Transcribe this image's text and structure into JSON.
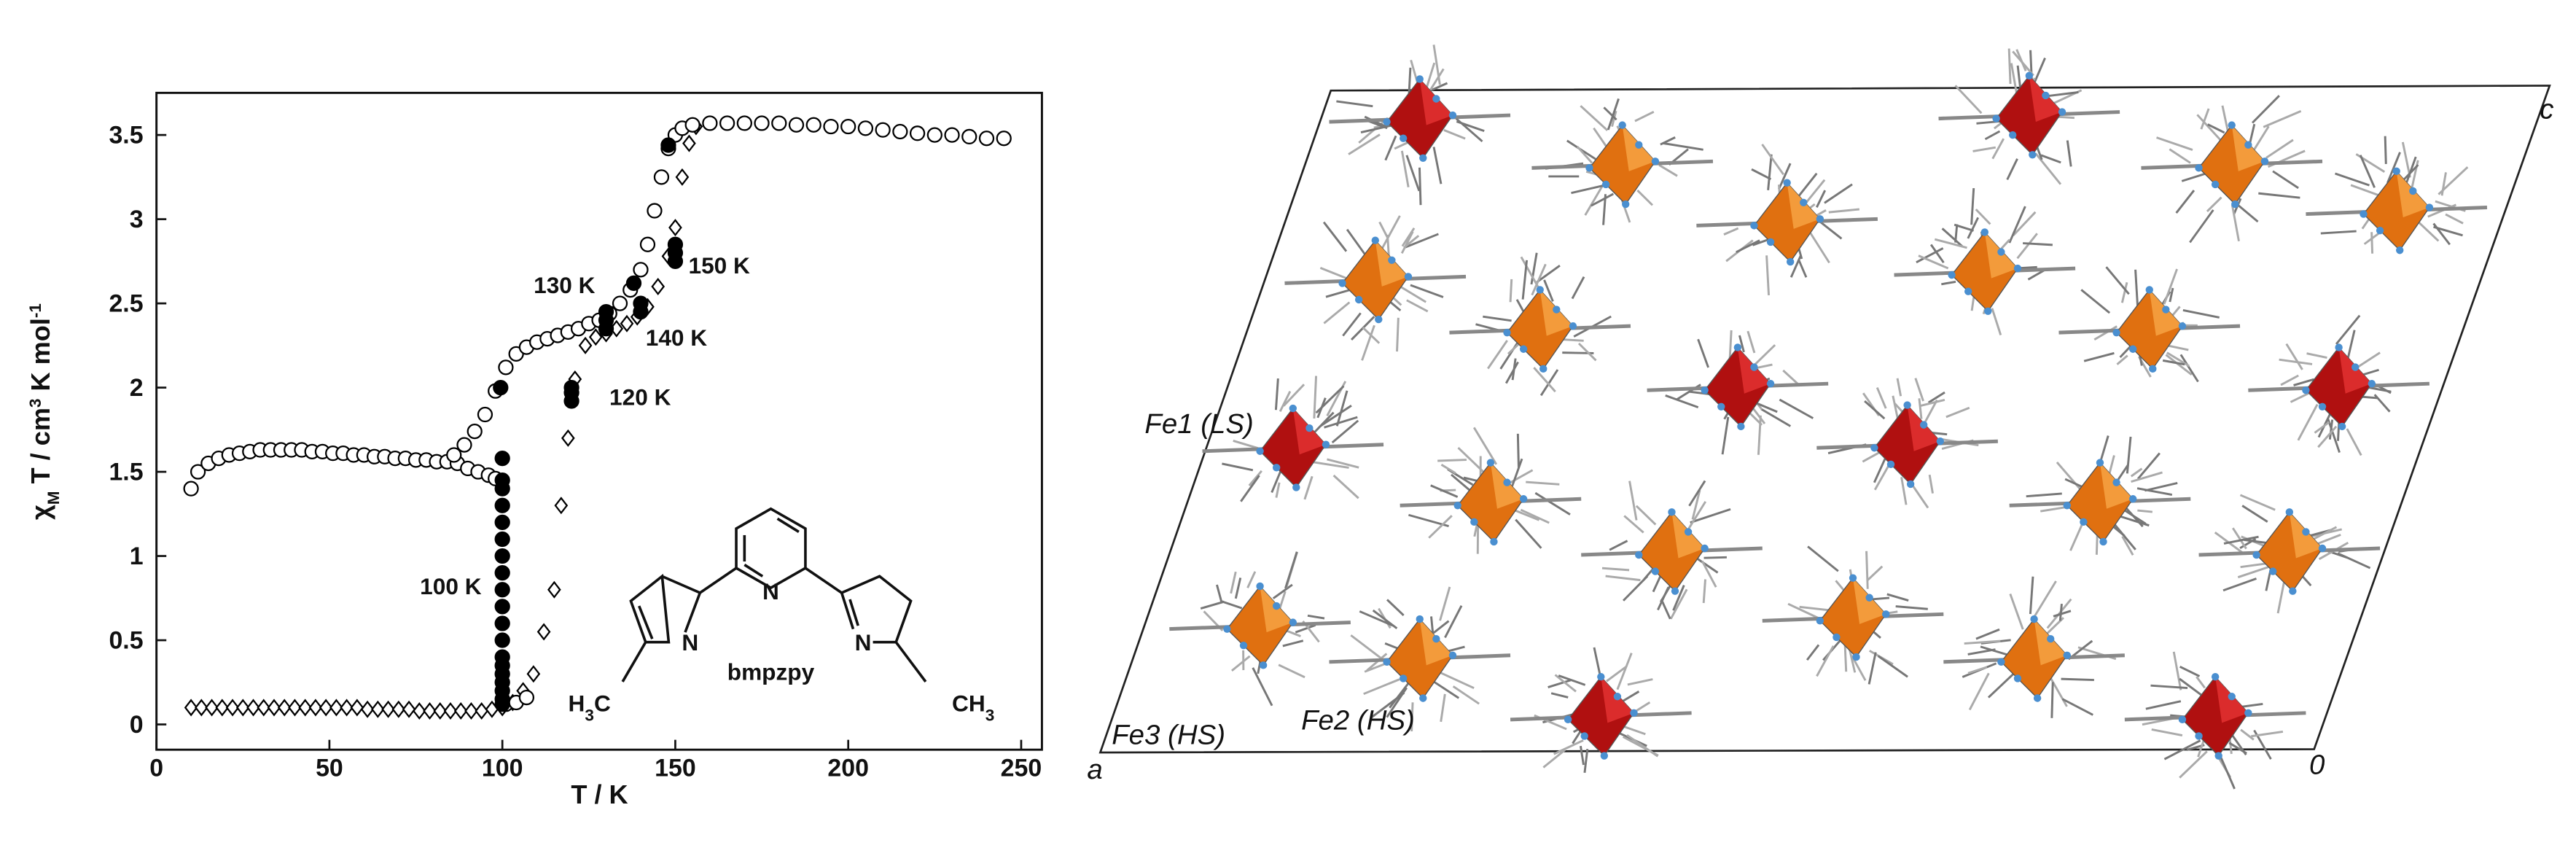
{
  "chart_data": {
    "type": "scatter",
    "x_label": "T / K",
    "y_label": [
      "χ",
      "M",
      " T / cm",
      "3",
      " K mol",
      "-1"
    ],
    "xlim": [
      0,
      256
    ],
    "ylim": [
      -0.15,
      3.75
    ],
    "xticks": [
      0,
      50,
      100,
      150,
      200,
      250
    ],
    "yticks": [
      0,
      0.5,
      1,
      1.5,
      2,
      2.5,
      3,
      3.5
    ],
    "grid": false,
    "annotations": [
      "130 K",
      "150 K",
      "140 K",
      "120 K",
      "100 K"
    ],
    "series": [
      {
        "marker": "diamond",
        "color": "#000000",
        "x": [
          10,
          13,
          16,
          19,
          22,
          25,
          28,
          31,
          34,
          37,
          40,
          43,
          46,
          49,
          52,
          55,
          58,
          61,
          64,
          67,
          70,
          73,
          76,
          79,
          82,
          85,
          88,
          91,
          94,
          97,
          100,
          103,
          106,
          109,
          112,
          115,
          117,
          119,
          121,
          124,
          127,
          130,
          133,
          136,
          139,
          142,
          145,
          148,
          150,
          152,
          154,
          156
        ],
        "values": [
          0.1,
          0.1,
          0.1,
          0.1,
          0.1,
          0.1,
          0.1,
          0.1,
          0.1,
          0.1,
          0.1,
          0.1,
          0.1,
          0.1,
          0.1,
          0.1,
          0.1,
          0.09,
          0.09,
          0.09,
          0.09,
          0.09,
          0.08,
          0.08,
          0.08,
          0.08,
          0.08,
          0.08,
          0.08,
          0.09,
          0.1,
          0.13,
          0.2,
          0.3,
          0.55,
          0.8,
          1.3,
          1.7,
          2.05,
          2.25,
          2.3,
          2.32,
          2.35,
          2.38,
          2.42,
          2.48,
          2.6,
          2.78,
          2.95,
          3.25,
          3.45,
          3.55
        ]
      },
      {
        "marker": "open-circle",
        "color": "#000000",
        "x": [
          10,
          12,
          15,
          18,
          21,
          24,
          27,
          30,
          33,
          36,
          39,
          42,
          45,
          48,
          51,
          54,
          57,
          60,
          63,
          66,
          69,
          72,
          75,
          78,
          81,
          84,
          87,
          90,
          93,
          96,
          98,
          86,
          89,
          92,
          95,
          98,
          101,
          104,
          107,
          110,
          113,
          116,
          119,
          122,
          125,
          128,
          131,
          134,
          137,
          140,
          142,
          144,
          146,
          148,
          150,
          152,
          155,
          160,
          165,
          170,
          175,
          180,
          185,
          190,
          195,
          200,
          205,
          210,
          215,
          220,
          225,
          230,
          235,
          240,
          245,
          101,
          104,
          107
        ],
        "values": [
          1.4,
          1.5,
          1.55,
          1.58,
          1.6,
          1.61,
          1.62,
          1.63,
          1.63,
          1.63,
          1.63,
          1.63,
          1.62,
          1.62,
          1.61,
          1.61,
          1.6,
          1.6,
          1.59,
          1.59,
          1.58,
          1.58,
          1.57,
          1.57,
          1.56,
          1.56,
          1.55,
          1.52,
          1.5,
          1.48,
          1.46,
          1.6,
          1.66,
          1.74,
          1.84,
          1.98,
          2.12,
          2.2,
          2.24,
          2.27,
          2.29,
          2.31,
          2.33,
          2.35,
          2.38,
          2.4,
          2.44,
          2.5,
          2.58,
          2.7,
          2.85,
          3.05,
          3.25,
          3.42,
          3.5,
          3.54,
          3.56,
          3.57,
          3.57,
          3.57,
          3.57,
          3.57,
          3.56,
          3.56,
          3.55,
          3.55,
          3.54,
          3.53,
          3.52,
          3.51,
          3.5,
          3.5,
          3.49,
          3.48,
          3.48,
          0.12,
          0.13,
          0.16
        ]
      },
      {
        "marker": "filled-circle",
        "color": "#000000",
        "x": [
          99.5,
          100,
          100,
          100,
          100,
          100,
          100,
          100,
          100,
          100,
          100,
          100,
          100,
          100,
          100,
          100,
          100,
          100,
          100,
          100,
          120,
          120,
          120,
          130,
          130,
          130,
          140,
          140,
          138,
          150,
          150,
          150,
          148
        ],
        "values": [
          2.0,
          1.58,
          1.45,
          1.4,
          1.3,
          1.2,
          1.1,
          1.0,
          0.9,
          0.8,
          0.7,
          0.6,
          0.5,
          0.4,
          0.35,
          0.3,
          0.25,
          0.2,
          0.15,
          0.12,
          1.92,
          1.97,
          2.0,
          2.35,
          2.4,
          2.45,
          2.45,
          2.5,
          2.62,
          2.75,
          2.8,
          2.85,
          3.44
        ]
      }
    ]
  },
  "molecule": {
    "name": "bmpzpy",
    "atoms": [
      "N",
      "N",
      "N"
    ],
    "methyl_left": [
      "H",
      "3",
      "C"
    ],
    "methyl_right": [
      "CH",
      "3"
    ]
  },
  "structure": {
    "labels": [
      "Fe1 (LS)",
      "Fe2 (HS)",
      "Fe3 (HS)",
      "a",
      "c",
      "0"
    ]
  }
}
